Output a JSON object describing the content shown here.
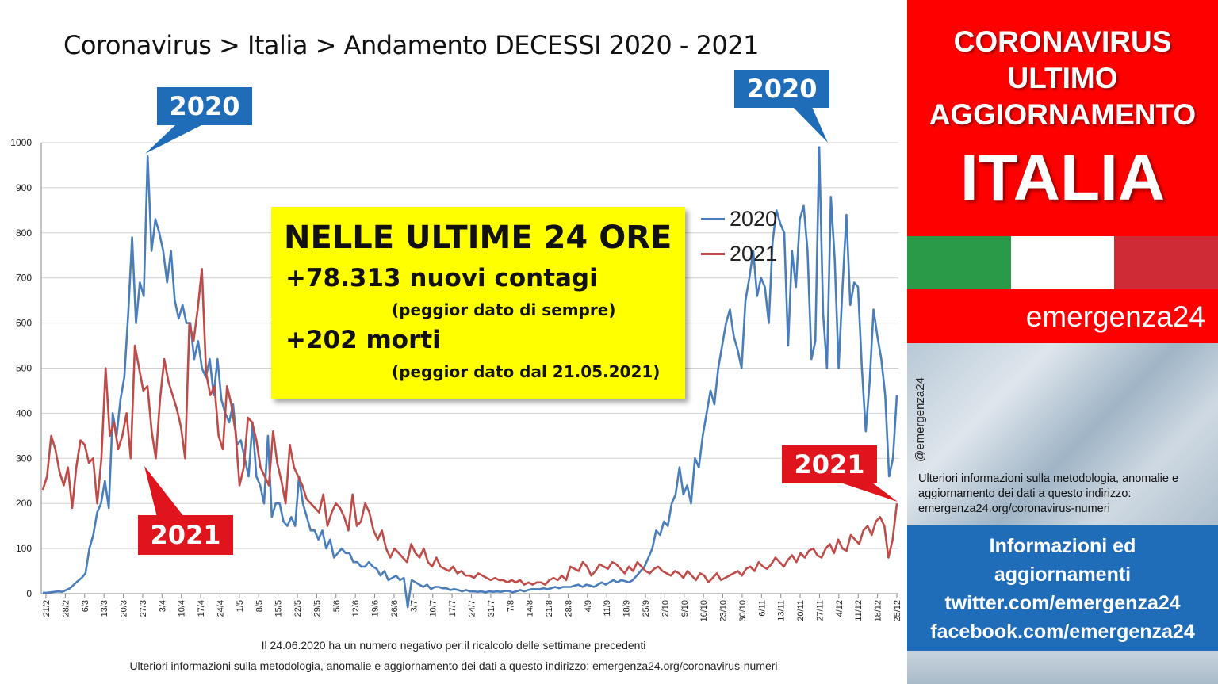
{
  "title": "Coronavirus > Italia > Andamento DECESSI 2020 - 2021",
  "callouts": {
    "left_2020": "2020",
    "right_2020": "2020",
    "left_2021": "2021",
    "right_2021": "2021"
  },
  "highlight_box": {
    "heading": "NELLE ULTIME 24 ORE",
    "line1": "+78.313 nuovi contagi",
    "sub1": "(peggior dato di sempre)",
    "line2": "+202 morti",
    "sub2": "(peggior dato dal 21.05.2021)"
  },
  "legend": [
    {
      "label": "2020",
      "color": "#4a7ebb"
    },
    {
      "label": "2021",
      "color": "#be4b48"
    }
  ],
  "footnotes": {
    "note1": "Il 24.06.2020 ha un numero negativo per il ricalcolo delle settimane precedenti",
    "note2": "Ulteriori informazioni sulla metodologia, anomalie e aggiornamento dei dati a questo indirizzo: emergenza24.org/coronavirus-numeri"
  },
  "right_panel": {
    "line1": "CORONAVIRUS",
    "line2": "ULTIMO",
    "line3": "AGGIORNAMENTO",
    "country": "ITALIA",
    "flag_colors": [
      "#2a9a48",
      "#ffffff",
      "#cf2b37"
    ],
    "brand": "emergenza24",
    "handle": "@emergenza24",
    "info": "Ulteriori informazioni sulla metodologia, anomalie e aggiornamento dei dati a questo indirizzo: emergenza24.org/coronavirus-numeri",
    "social1": "Informazioni ed",
    "social2": "aggiornamenti",
    "social3": "twitter.com/emergenza24",
    "social4": "facebook.com/emergenza24"
  },
  "chart_data": {
    "type": "line",
    "title": "Coronavirus > Italia > Andamento DECESSI 2020 - 2021",
    "ylim": [
      0,
      1000
    ],
    "yticks": [
      0,
      100,
      200,
      300,
      400,
      500,
      600,
      700,
      800,
      900,
      1000
    ],
    "grid": true,
    "legend_position": "top-right",
    "x_tick_labels": [
      "21/2",
      "28/2",
      "6/3",
      "13/3",
      "20/3",
      "27/3",
      "3/4",
      "10/4",
      "17/4",
      "24/4",
      "1/5",
      "8/5",
      "15/5",
      "22/5",
      "29/5",
      "5/6",
      "12/6",
      "19/6",
      "26/6",
      "3/7",
      "10/7",
      "17/7",
      "24/7",
      "31/7",
      "7/8",
      "14/8",
      "21/8",
      "28/8",
      "4/9",
      "11/9",
      "18/9",
      "25/9",
      "2/10",
      "9/10",
      "16/10",
      "23/10",
      "30/10",
      "6/11",
      "13/11",
      "20/11",
      "27/11",
      "4/12",
      "11/12",
      "18/12",
      "25/12"
    ],
    "series": [
      {
        "name": "2020",
        "color": "#4a7ebb",
        "values": [
          2,
          2,
          3,
          4,
          5,
          4,
          8,
          12,
          20,
          28,
          35,
          45,
          100,
          130,
          180,
          200,
          250,
          190,
          400,
          350,
          430,
          480,
          620,
          790,
          600,
          690,
          660,
          970,
          760,
          830,
          800,
          760,
          690,
          760,
          650,
          610,
          640,
          600,
          600,
          520,
          560,
          500,
          480,
          520,
          440,
          520,
          430,
          400,
          380,
          420,
          330,
          340,
          300,
          260,
          380,
          260,
          240,
          200,
          350,
          170,
          200,
          200,
          160,
          150,
          170,
          150,
          260,
          200,
          170,
          140,
          140,
          120,
          140,
          100,
          120,
          80,
          90,
          100,
          90,
          90,
          70,
          70,
          60,
          60,
          70,
          60,
          55,
          40,
          50,
          30,
          35,
          40,
          30,
          35,
          -30,
          30,
          25,
          20,
          15,
          20,
          10,
          15,
          15,
          12,
          12,
          8,
          10,
          8,
          5,
          8,
          5,
          5,
          4,
          5,
          3,
          5,
          4,
          5,
          4,
          6,
          6,
          3,
          5,
          8,
          5,
          8,
          10,
          10,
          10,
          12,
          10,
          12,
          15,
          12,
          15,
          15,
          15,
          18,
          20,
          15,
          20,
          18,
          15,
          20,
          25,
          20,
          25,
          30,
          25,
          30,
          28,
          25,
          30,
          40,
          50,
          60,
          80,
          100,
          140,
          130,
          160,
          150,
          200,
          220,
          280,
          220,
          240,
          200,
          300,
          280,
          350,
          400,
          450,
          420,
          500,
          550,
          600,
          630,
          570,
          540,
          500,
          650,
          700,
          760,
          660,
          700,
          680,
          600,
          780,
          850,
          820,
          800,
          550,
          760,
          680,
          830,
          860,
          760,
          520,
          560,
          990,
          620,
          500,
          880,
          740,
          500,
          680,
          840,
          640,
          690,
          680,
          500,
          360,
          470,
          630,
          570,
          520,
          440,
          260,
          300,
          440
        ]
      },
      {
        "name": "2021",
        "color": "#be4b48",
        "values": [
          230,
          260,
          350,
          320,
          270,
          240,
          280,
          190,
          280,
          340,
          330,
          290,
          300,
          200,
          300,
          500,
          350,
          380,
          320,
          350,
          400,
          300,
          550,
          500,
          450,
          460,
          360,
          300,
          430,
          520,
          470,
          440,
          410,
          370,
          300,
          600,
          560,
          630,
          720,
          490,
          440,
          460,
          350,
          320,
          460,
          420,
          360,
          240,
          280,
          390,
          380,
          340,
          280,
          260,
          240,
          360,
          290,
          250,
          200,
          330,
          280,
          260,
          240,
          210,
          200,
          190,
          180,
          220,
          150,
          180,
          200,
          190,
          170,
          140,
          220,
          150,
          160,
          200,
          180,
          140,
          120,
          140,
          100,
          80,
          100,
          90,
          80,
          70,
          110,
          90,
          80,
          100,
          70,
          60,
          80,
          60,
          55,
          50,
          60,
          45,
          50,
          40,
          40,
          35,
          45,
          40,
          35,
          30,
          35,
          30,
          30,
          25,
          30,
          25,
          30,
          20,
          25,
          20,
          25,
          25,
          20,
          30,
          35,
          30,
          40,
          30,
          60,
          55,
          50,
          70,
          60,
          40,
          50,
          65,
          60,
          55,
          70,
          65,
          55,
          45,
          60,
          50,
          70,
          60,
          50,
          45,
          55,
          60,
          50,
          45,
          40,
          50,
          45,
          35,
          50,
          40,
          30,
          45,
          40,
          25,
          35,
          45,
          30,
          35,
          40,
          45,
          50,
          40,
          55,
          60,
          50,
          70,
          60,
          55,
          65,
          80,
          70,
          60,
          75,
          85,
          70,
          90,
          80,
          95,
          100,
          85,
          80,
          100,
          110,
          90,
          120,
          100,
          95,
          130,
          120,
          110,
          140,
          150,
          130,
          160,
          170,
          150,
          80,
          120,
          200
        ]
      }
    ]
  }
}
